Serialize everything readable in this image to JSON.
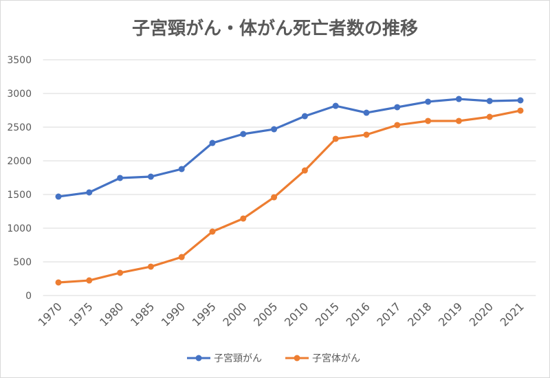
{
  "chart_data": {
    "type": "line",
    "title": "子宮頸がん・体がん死亡者数の推移",
    "categories": [
      "1970",
      "1975",
      "1980",
      "1985",
      "1990",
      "1995",
      "2000",
      "2005",
      "2010",
      "2015",
      "2016",
      "2017",
      "2018",
      "2019",
      "2020",
      "2021"
    ],
    "series": [
      {
        "name": "子宮頸がん",
        "color": "#4472C4",
        "values": [
          1469,
          1531,
          1745,
          1765,
          1878,
          2265,
          2398,
          2469,
          2663,
          2816,
          2714,
          2796,
          2878,
          2918,
          2888,
          2898
        ]
      },
      {
        "name": "子宮体がん",
        "color": "#ED7D31",
        "values": [
          194,
          224,
          337,
          429,
          571,
          949,
          1143,
          1459,
          1857,
          2327,
          2388,
          2531,
          2592,
          2592,
          2653,
          2745
        ]
      }
    ],
    "ylim": [
      0,
      3500
    ],
    "yticks": [
      "0",
      "500",
      "1000",
      "1500",
      "2000",
      "2500",
      "3000",
      "3500"
    ],
    "grid": true,
    "legend": "bottom",
    "markers": true
  }
}
